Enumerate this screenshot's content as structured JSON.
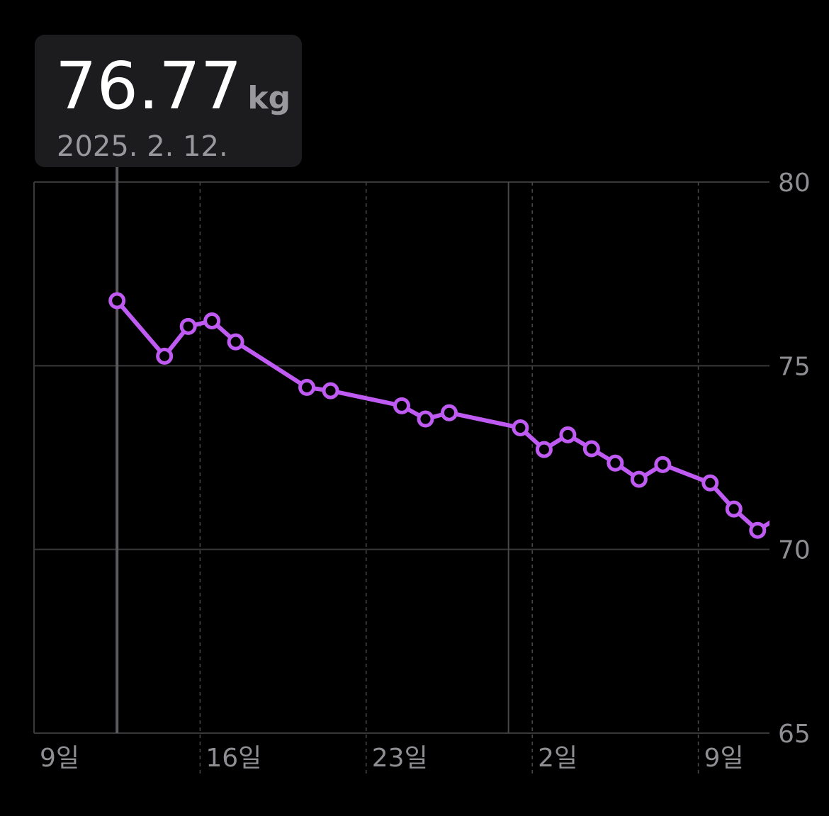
{
  "chart_data": {
    "type": "line",
    "color": "#bf5af2",
    "categories": [
      "2025-02-12",
      "2025-02-14",
      "2025-02-15",
      "2025-02-16",
      "2025-02-17",
      "2025-02-20",
      "2025-02-21",
      "2025-02-24",
      "2025-02-25",
      "2025-02-26",
      "2025-03-01",
      "2025-03-02",
      "2025-03-03",
      "2025-03-04",
      "2025-03-05",
      "2025-03-06",
      "2025-03-07",
      "2025-03-09",
      "2025-03-10",
      "2025-03-11",
      "2025-03-12"
    ],
    "values": [
      76.77,
      75.26,
      76.07,
      76.22,
      75.65,
      74.41,
      74.32,
      73.91,
      73.55,
      73.72,
      73.31,
      72.72,
      73.12,
      72.74,
      72.35,
      71.91,
      72.31,
      71.81,
      71.1,
      70.52,
      70.92
    ],
    "xlim": [
      "2025-02-09",
      "2025-03-12"
    ],
    "xticks": [
      {
        "value": "2025-02-09",
        "label": "9일"
      },
      {
        "value": "2025-02-16",
        "label": "16일"
      },
      {
        "value": "2025-02-23",
        "label": "23일"
      },
      {
        "value": "2025-03-02",
        "label": "2일"
      },
      {
        "value": "2025-03-09",
        "label": "9일"
      }
    ],
    "ylim": [
      65,
      80
    ],
    "yticks": [
      65,
      70,
      75,
      80
    ],
    "grid": true,
    "tooltip": {
      "x": "2025-02-12",
      "unit": "kg",
      "date": "2025. 2. 12."
    }
  }
}
